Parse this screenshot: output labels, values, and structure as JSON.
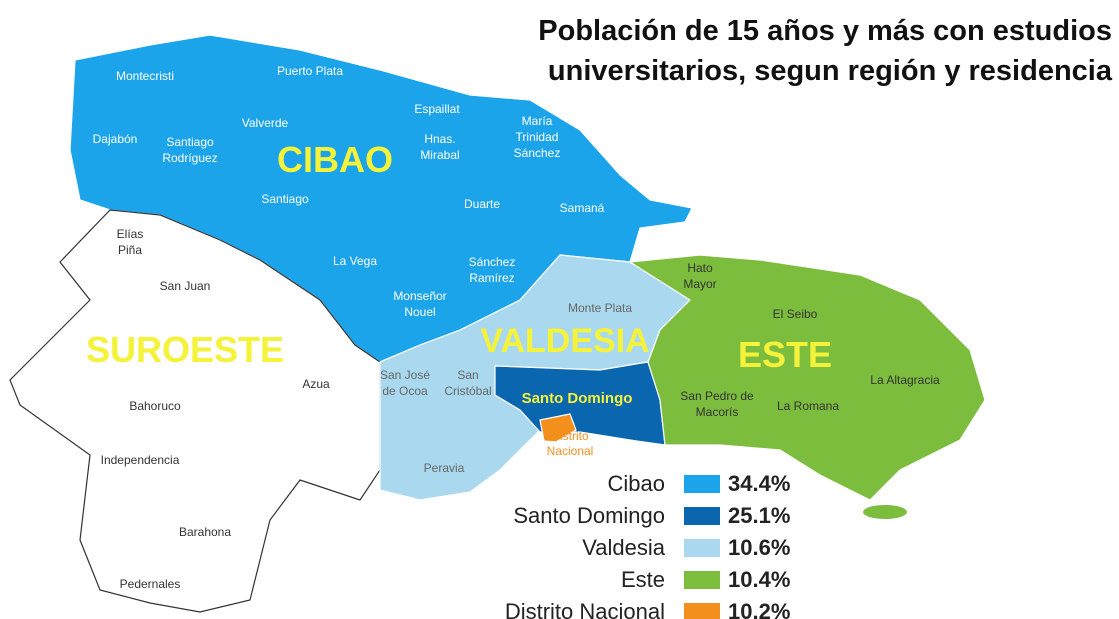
{
  "title_lines": [
    "Población de 15 años y más con estudios",
    "universitarios, segun región y residencia"
  ],
  "regions": [
    {
      "name": "CIBAO",
      "color": "#1ba4ea"
    },
    {
      "name": "SUROESTE",
      "color": "#ffffff"
    },
    {
      "name": "VALDESIA",
      "color": "#aad9ef"
    },
    {
      "name": "Santo Domingo",
      "color": "#0b66b0"
    },
    {
      "name": "Distrito Nacional",
      "lines": [
        "Distrito",
        "Nacional"
      ],
      "color": "#f3901d"
    },
    {
      "name": "ESTE",
      "color": "#7cbd3d"
    }
  ],
  "provinces": [
    [
      "Montecristi"
    ],
    [
      "Puerto Plata"
    ],
    [
      "Espaillat"
    ],
    [
      "María",
      "Trinidad",
      "Sánchez"
    ],
    [
      "Dajabón"
    ],
    [
      "Santiago",
      "Rodríguez"
    ],
    [
      "Valverde"
    ],
    [
      "Hnas.",
      "Mirabal"
    ],
    [
      "Santiago"
    ],
    [
      "Duarte"
    ],
    [
      "Samaná"
    ],
    [
      "La Vega"
    ],
    [
      "Sánchez",
      "Ramírez"
    ],
    [
      "Monseñor",
      "Nouel"
    ],
    [
      "Elías",
      "Piña"
    ],
    [
      "San Juan"
    ],
    [
      "Azua"
    ],
    [
      "Bahoruco"
    ],
    [
      "Independencia"
    ],
    [
      "Barahona"
    ],
    [
      "Pedernales"
    ],
    [
      "Monte Plata"
    ],
    [
      "San José",
      "de Ocoa"
    ],
    [
      "San",
      "Cristóbal"
    ],
    [
      "Peravia"
    ],
    [
      "Hato",
      "Mayor"
    ],
    [
      "El Seibo"
    ],
    [
      "San Pedro de",
      "Macorís"
    ],
    [
      "La Romana"
    ],
    [
      "La Altagracia"
    ]
  ],
  "legend": [
    {
      "name": "Cibao",
      "value": 34.4,
      "value_label": "34.4%",
      "color": "#1ba4ea"
    },
    {
      "name": "Santo Domingo",
      "value": 25.1,
      "value_label": "25.1%",
      "color": "#0b66b0"
    },
    {
      "name": "Valdesia",
      "value": 10.6,
      "value_label": "10.6%",
      "color": "#aad9ef"
    },
    {
      "name": "Este",
      "value": 10.4,
      "value_label": "10.4%",
      "color": "#7cbd3d"
    },
    {
      "name": "Distrito Nacional",
      "value": 10.2,
      "value_label": "10.2%",
      "color": "#f3901d"
    }
  ]
}
